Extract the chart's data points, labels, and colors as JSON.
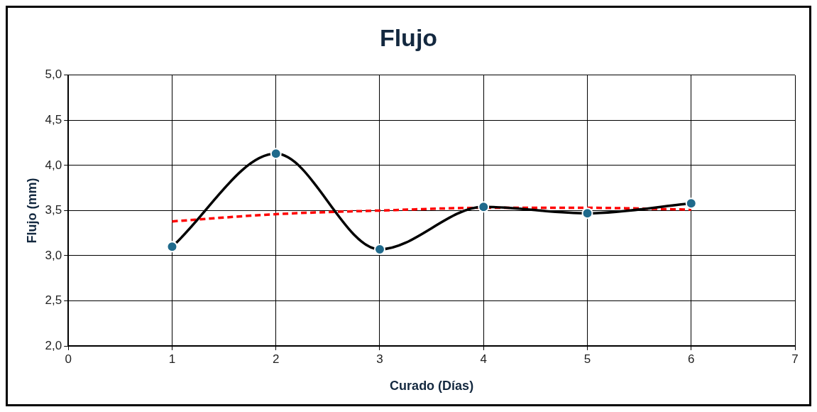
{
  "chart_data": {
    "type": "line",
    "title": "Flujo",
    "xlabel": "Curado (Días)",
    "ylabel": "Flujo (mm)",
    "x": [
      1,
      2,
      3,
      4,
      5,
      6
    ],
    "series": [
      {
        "color": "#000000",
        "values": [
          3.1,
          4.13,
          3.07,
          3.54,
          3.47,
          3.58
        ],
        "marker": "circle",
        "line_style": "solid"
      },
      {
        "color": "#ff0000",
        "x": [
          1,
          2,
          3,
          4,
          5,
          6
        ],
        "values": [
          3.38,
          3.46,
          3.5,
          3.53,
          3.53,
          3.51
        ],
        "marker": "none",
        "line_style": "dashed"
      }
    ],
    "xlim": [
      0,
      7
    ],
    "xticks": [
      0,
      1,
      2,
      3,
      4,
      5,
      6,
      7
    ],
    "ylim": [
      2,
      5
    ],
    "yticks": [
      {
        "value": 2,
        "label": "2,0"
      },
      {
        "value": 2.5,
        "label": "2,5"
      },
      {
        "value": 3,
        "label": "3,0"
      },
      {
        "value": 3.5,
        "label": "3,5"
      },
      {
        "value": 4,
        "label": "4,0"
      },
      {
        "value": 4.5,
        "label": "4,5"
      },
      {
        "value": 5,
        "label": "5,0"
      }
    ],
    "grid": true,
    "legend": false
  }
}
